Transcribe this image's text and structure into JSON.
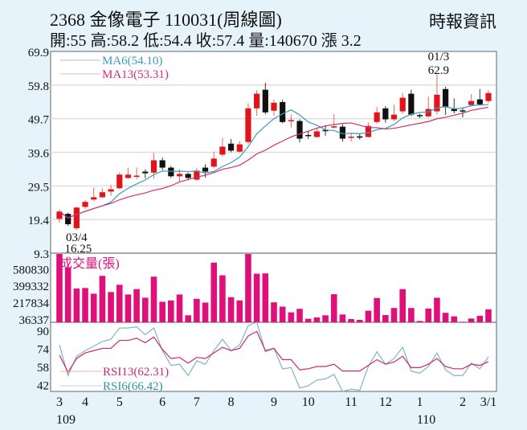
{
  "header": {
    "title": "2368  金像電子 110031(周線圖)",
    "quote": "開:55 高:58.2 低:54.4 收:57.4 量:140670 漲 3.2",
    "source": "時報資訊"
  },
  "colors": {
    "background": "#e6f3fb",
    "up_candle": "#e3121b",
    "down_candle": "#111111",
    "ma6": "#3a9cbc",
    "ma13": "#d2306c",
    "volume": "#e0107a",
    "rsi6": "#7fb4c4",
    "rsi13": "#cc2a68"
  },
  "chart_data": [
    {
      "type": "candlestick",
      "title": "",
      "y_ticks": [
        69.9,
        59.8,
        49.7,
        39.6,
        29.5,
        19.4,
        9.3
      ],
      "ylim": [
        9.3,
        69.9
      ],
      "grid": true,
      "legend": [
        {
          "name": "MA6(54.10)",
          "key": "ma6"
        },
        {
          "name": "MA13(53.31)",
          "key": "ma13"
        }
      ],
      "annotations": [
        {
          "label_date": "01/3",
          "label_value": "62.9",
          "index": 44,
          "kind": "high"
        },
        {
          "label_date": "03/4",
          "label_value": "16.25",
          "index": 2,
          "kind": "low"
        }
      ],
      "ohlc": [
        [
          19.6,
          22.4,
          18.5,
          21.8
        ],
        [
          21.1,
          21.5,
          17.5,
          18.0
        ],
        [
          16.8,
          23.2,
          16.25,
          23.0
        ],
        [
          23.2,
          25.3,
          22.6,
          24.7
        ],
        [
          25.4,
          29.0,
          25.0,
          26.1
        ],
        [
          26.1,
          28.8,
          25.8,
          27.6
        ],
        [
          27.8,
          29.8,
          26.5,
          28.5
        ],
        [
          28.8,
          33.6,
          28.5,
          32.9
        ],
        [
          31.9,
          35.0,
          31.5,
          32.9
        ],
        [
          32.3,
          35.0,
          31.5,
          32.6
        ],
        [
          33.8,
          34.5,
          31.8,
          33.3
        ],
        [
          33.5,
          39.4,
          31.7,
          37.2
        ],
        [
          37.2,
          38.0,
          34.3,
          35.0
        ],
        [
          35.0,
          35.5,
          31.9,
          32.4
        ],
        [
          32.4,
          34.5,
          30.9,
          33.1
        ],
        [
          33.1,
          33.5,
          31.2,
          31.9
        ],
        [
          31.4,
          35.0,
          31.0,
          34.1
        ],
        [
          35.0,
          36.0,
          32.0,
          33.8
        ],
        [
          35.3,
          39.8,
          34.7,
          37.7
        ],
        [
          38.9,
          43.9,
          38.3,
          41.3
        ],
        [
          42.2,
          43.6,
          39.6,
          40.1
        ],
        [
          39.8,
          43.0,
          39.6,
          42.0
        ],
        [
          42.7,
          54.3,
          42.0,
          52.8
        ],
        [
          52.8,
          58.3,
          50.6,
          57.2
        ],
        [
          58.4,
          60.5,
          51.0,
          51.6
        ],
        [
          52.1,
          55.4,
          50.6,
          54.5
        ],
        [
          54.7,
          55.4,
          48.3,
          48.7
        ],
        [
          49.0,
          51.0,
          47.0,
          49.3
        ],
        [
          49.0,
          49.5,
          42.6,
          43.7
        ],
        [
          44.8,
          46.0,
          43.6,
          44.5
        ],
        [
          44.2,
          47.0,
          44.0,
          45.9
        ],
        [
          46.3,
          47.8,
          44.6,
          46.0
        ],
        [
          47.2,
          51.1,
          46.8,
          47.4
        ],
        [
          47.3,
          48.0,
          42.8,
          43.7
        ],
        [
          44.1,
          45.3,
          42.8,
          44.3
        ],
        [
          44.4,
          45.3,
          43.4,
          44.0
        ],
        [
          44.2,
          48.5,
          44.0,
          47.5
        ],
        [
          48.7,
          53.2,
          48.2,
          51.6
        ],
        [
          52.8,
          53.5,
          48.5,
          49.5
        ],
        [
          49.5,
          53.9,
          49.0,
          50.9
        ],
        [
          51.9,
          57.5,
          51.2,
          56.0
        ],
        [
          57.2,
          58.4,
          50.5,
          50.9
        ],
        [
          50.8,
          51.2,
          49.9,
          50.5
        ],
        [
          50.4,
          56.3,
          50.0,
          52.6
        ],
        [
          51.9,
          62.9,
          51.0,
          56.9
        ],
        [
          58.6,
          59.3,
          50.8,
          53.1
        ],
        [
          52.6,
          55.8,
          51.3,
          52.0
        ],
        [
          52.2,
          53.1,
          50.1,
          52.0
        ],
        [
          53.8,
          57.1,
          53.4,
          55.0
        ],
        [
          55.5,
          58.6,
          53.6,
          54.0
        ],
        [
          55.0,
          58.2,
          54.4,
          57.4
        ]
      ]
    },
    {
      "type": "bar",
      "title": "成交量(張)",
      "y_ticks": [
        580830,
        399332,
        217834,
        36337
      ],
      "ylim": [
        0,
        750000
      ],
      "values": [
        750000,
        594800,
        366250,
        372100,
        310600,
        504000,
        328200,
        407300,
        301800,
        360400,
        266600,
        495200,
        222700,
        237300,
        301800,
        76200,
        254900,
        213900,
        647500,
        509800,
        272500,
        237300,
        747000,
        527400,
        530300,
        216800,
        169900,
        108000,
        146500,
        38100,
        52700,
        76200,
        304700,
        85000,
        35200,
        26400,
        126000,
        263700,
        79100,
        155300,
        360400,
        155300,
        14700,
        149400,
        266600,
        102500,
        64500,
        5900,
        41000,
        70300,
        140670
      ]
    },
    {
      "type": "line",
      "title": "",
      "y_ticks": [
        90,
        74,
        58,
        42
      ],
      "ylim": [
        36,
        97
      ],
      "series": [
        {
          "name": "RSI13(62.31)",
          "key": "rsi13",
          "values": [
            68,
            53,
            65,
            70,
            72,
            74,
            74,
            81,
            81,
            83,
            79,
            84,
            73,
            65,
            66,
            61,
            66,
            65,
            70,
            75,
            72,
            74,
            85,
            89,
            72,
            74,
            64,
            64,
            55,
            56,
            58,
            58,
            60,
            54,
            54,
            54,
            59,
            64,
            60,
            62,
            67,
            57,
            57,
            60,
            65,
            58,
            56,
            56,
            60,
            59,
            62.31
          ]
        },
        {
          "name": "RSI6(66.42)",
          "key": "rsi6",
          "values": [
            77,
            50,
            67,
            72,
            76,
            80,
            82,
            92,
            92,
            93,
            86,
            92,
            72,
            59,
            60,
            50,
            63,
            60,
            72,
            82,
            72,
            77,
            94,
            97,
            71,
            74,
            56,
            57,
            39,
            41,
            46,
            47,
            51,
            36,
            38,
            37,
            58,
            71,
            60,
            65,
            75,
            54,
            52,
            58,
            70,
            55,
            50,
            50,
            61,
            56,
            66.42
          ]
        }
      ]
    }
  ],
  "x_axis": {
    "months": [
      {
        "label": "3",
        "index": 0,
        "year": "109"
      },
      {
        "label": "4",
        "index": 3
      },
      {
        "label": "5",
        "index": 7
      },
      {
        "label": "6",
        "index": 12
      },
      {
        "label": "7",
        "index": 16
      },
      {
        "label": "8",
        "index": 20
      },
      {
        "label": "9",
        "index": 25
      },
      {
        "label": "10",
        "index": 29
      },
      {
        "label": "11",
        "index": 34
      },
      {
        "label": "12",
        "index": 38
      },
      {
        "label": "1",
        "index": 42,
        "year": "110"
      },
      {
        "label": "2",
        "index": 47
      },
      {
        "label": "3/1",
        "index": 50
      }
    ]
  }
}
